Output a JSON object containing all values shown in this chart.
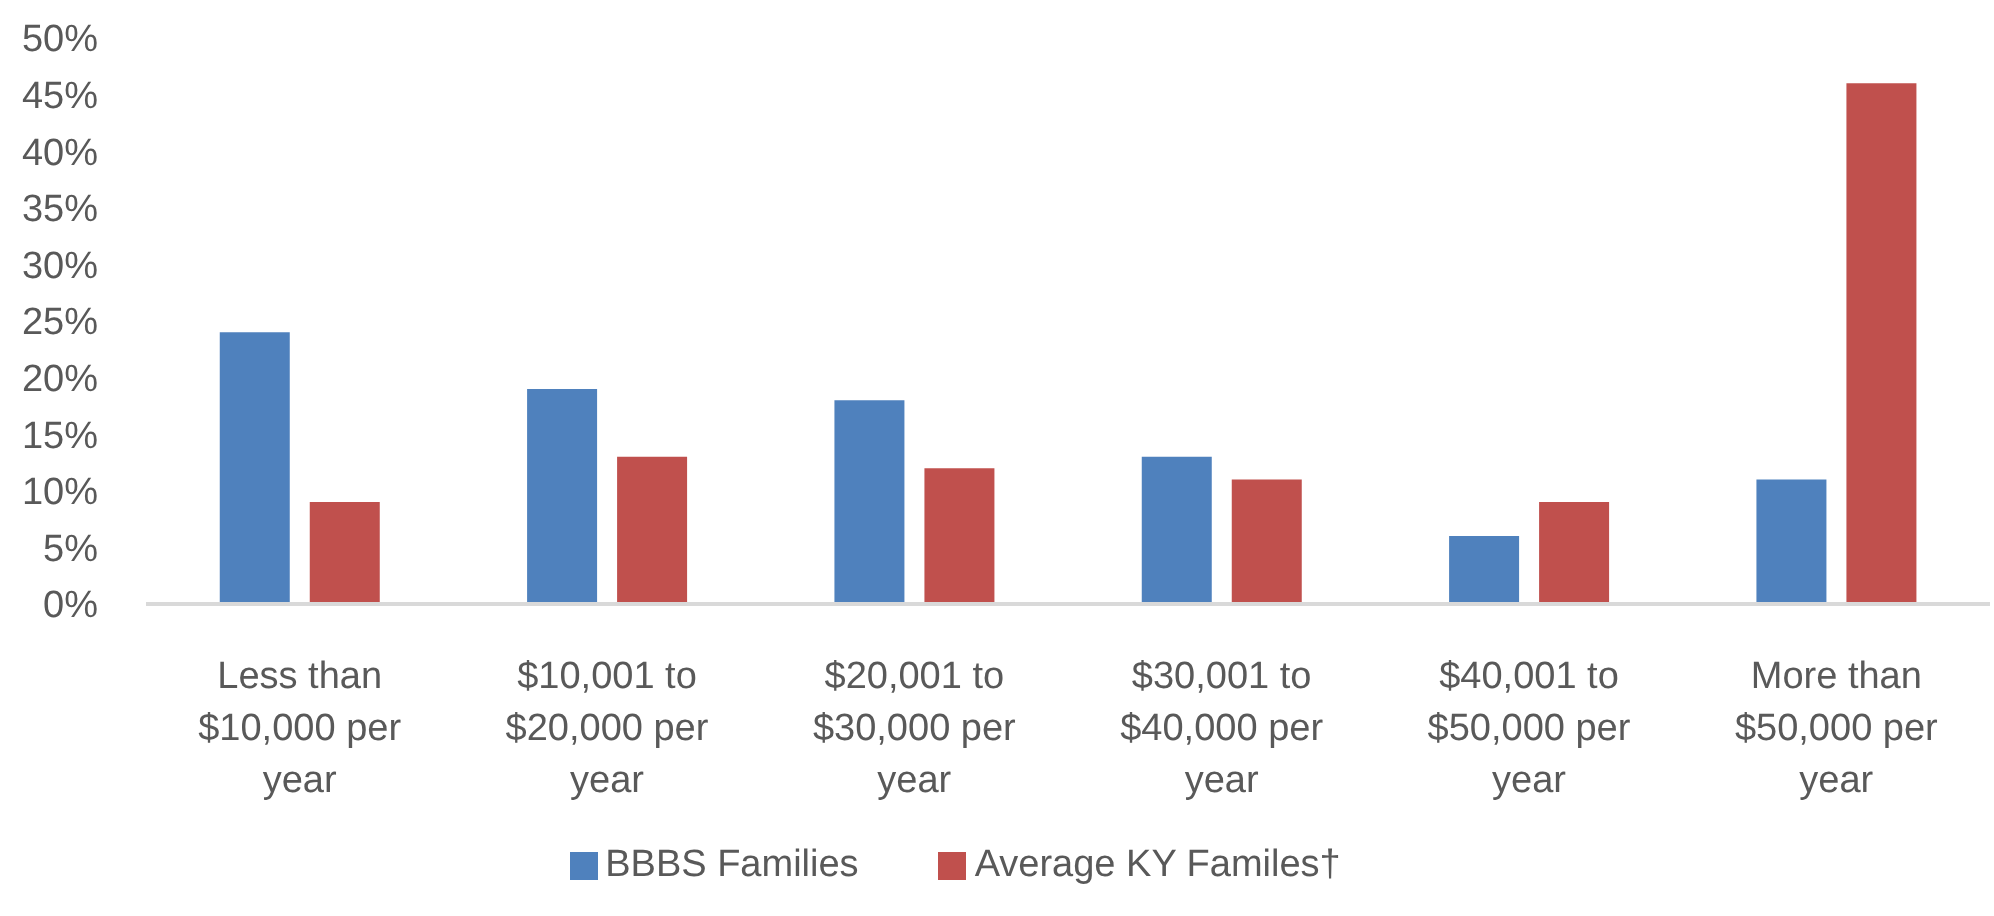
{
  "chart_data": {
    "type": "bar",
    "categories": [
      "Less than $10,000 per year",
      "$10,001 to $20,000 per year",
      "$20,001 to $30,000 per year",
      "$30,001 to $40,000 per year",
      "$40,001 to $50,000 per year",
      "More than $50,000 per year"
    ],
    "series": [
      {
        "name": "BBBS Families",
        "color": "#4f81bd",
        "values": [
          24,
          19,
          18,
          13,
          6,
          11
        ]
      },
      {
        "name": "Average KY Familes†",
        "color": "#c0504d",
        "values": [
          9,
          13,
          12,
          11,
          9,
          46
        ]
      }
    ],
    "ylim": [
      0,
      50
    ],
    "yticks": [
      {
        "value": 0,
        "label": "0%"
      },
      {
        "value": 5,
        "label": "5%"
      },
      {
        "value": 10,
        "label": "10%"
      },
      {
        "value": 15,
        "label": "15%"
      },
      {
        "value": 20,
        "label": "20%"
      },
      {
        "value": 25,
        "label": "25%"
      },
      {
        "value": 30,
        "label": "30%"
      },
      {
        "value": 35,
        "label": "35%"
      },
      {
        "value": 40,
        "label": "40%"
      },
      {
        "value": 45,
        "label": "45%"
      },
      {
        "value": 50,
        "label": "50%"
      }
    ],
    "legend": "bottom"
  }
}
